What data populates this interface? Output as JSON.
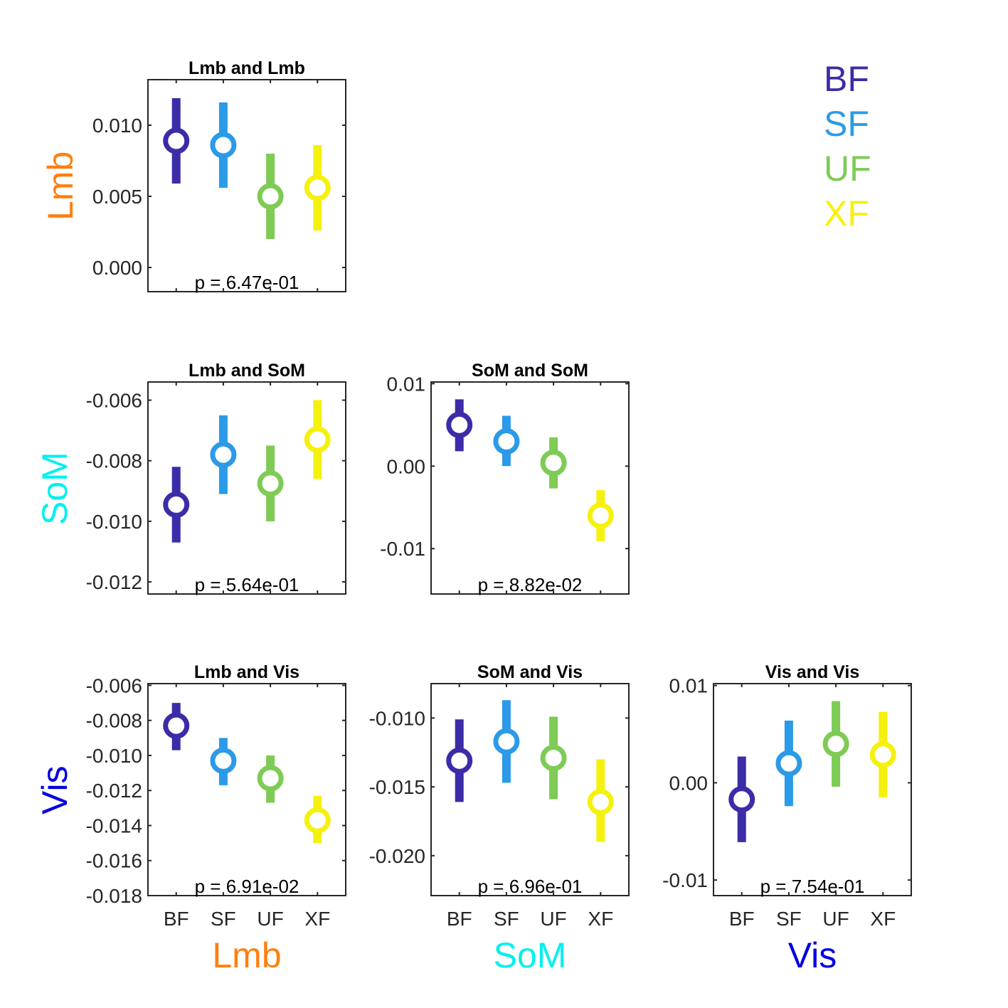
{
  "legend": [
    {
      "label": "BF",
      "color": "#3b2ca8"
    },
    {
      "label": "SF",
      "color": "#2b9ae8"
    },
    {
      "label": "UF",
      "color": "#7ecb55"
    },
    {
      "label": "XF",
      "color": "#f5f10e"
    }
  ],
  "column_labels": [
    {
      "label": "Lmb",
      "color": "#ff7f0e"
    },
    {
      "label": "SoM",
      "color": "#00f0f0"
    },
    {
      "label": "Vis",
      "color": "#0000e0"
    }
  ],
  "row_labels": [
    {
      "label": "Lmb",
      "color": "#ff7f0e"
    },
    {
      "label": "SoM",
      "color": "#00f0f0"
    },
    {
      "label": "Vis",
      "color": "#0000e0"
    }
  ],
  "chart_data": [
    {
      "type": "errorbar",
      "title": "Lmb and Lmb",
      "categories": [
        "BF",
        "SF",
        "UF",
        "XF"
      ],
      "values": [
        0.0089,
        0.0086,
        0.005,
        0.0056
      ],
      "lower": [
        0.0059,
        0.0056,
        0.002,
        0.0026
      ],
      "upper": [
        0.0119,
        0.0116,
        0.008,
        0.0086
      ],
      "ylim": [
        -0.0017,
        0.0132
      ],
      "yticks": [
        0.0,
        0.005,
        0.01
      ],
      "yticklabels": [
        "0.000",
        "0.005",
        "0.010"
      ],
      "annotation": "p = 6.47e-01",
      "show_xticklabels": false
    },
    {
      "type": "errorbar",
      "title": "Lmb and SoM",
      "categories": [
        "BF",
        "SF",
        "UF",
        "XF"
      ],
      "values": [
        -0.00945,
        -0.0078,
        -0.00875,
        -0.0073
      ],
      "lower": [
        -0.0107,
        -0.0091,
        -0.01,
        -0.0086
      ],
      "upper": [
        -0.0082,
        -0.0065,
        -0.0075,
        -0.006
      ],
      "ylim": [
        -0.0124,
        -0.0054
      ],
      "yticks": [
        -0.012,
        -0.01,
        -0.008,
        -0.006
      ],
      "yticklabels": [
        "-0.012",
        "-0.010",
        "-0.008",
        "-0.006"
      ],
      "annotation": "p = 5.64e-01",
      "show_xticklabels": false
    },
    {
      "type": "errorbar",
      "title": "SoM and SoM",
      "categories": [
        "BF",
        "SF",
        "UF",
        "XF"
      ],
      "values": [
        0.005,
        0.003,
        0.0004,
        -0.006
      ],
      "lower": [
        0.0018,
        0.0,
        -0.0027,
        -0.0091
      ],
      "upper": [
        0.0081,
        0.0061,
        0.0035,
        -0.0029
      ],
      "ylim": [
        -0.0155,
        0.0102
      ],
      "yticks": [
        -0.01,
        0.0,
        0.01
      ],
      "yticklabels": [
        "-0.01",
        "0.00",
        "0.01"
      ],
      "annotation": "p = 8.82e-02",
      "show_xticklabels": false
    },
    {
      "type": "errorbar",
      "title": "Lmb and Vis",
      "categories": [
        "BF",
        "SF",
        "UF",
        "XF"
      ],
      "values": [
        -0.0083,
        -0.0103,
        -0.0113,
        -0.0137
      ],
      "lower": [
        -0.0097,
        -0.0117,
        -0.0127,
        -0.015
      ],
      "upper": [
        -0.007,
        -0.009,
        -0.01,
        -0.0123
      ],
      "ylim": [
        -0.018,
        -0.0059
      ],
      "yticks": [
        -0.018,
        -0.016,
        -0.014,
        -0.012,
        -0.01,
        -0.008,
        -0.006
      ],
      "yticklabels": [
        "-0.018",
        "-0.016",
        "-0.014",
        "-0.012",
        "-0.010",
        "-0.008",
        "-0.006"
      ],
      "annotation": "p = 6.91e-02",
      "show_xticklabels": true
    },
    {
      "type": "errorbar",
      "title": "SoM and Vis",
      "categories": [
        "BF",
        "SF",
        "UF",
        "XF"
      ],
      "values": [
        -0.0131,
        -0.0117,
        -0.0129,
        -0.0161
      ],
      "lower": [
        -0.0161,
        -0.0147,
        -0.0159,
        -0.019
      ],
      "upper": [
        -0.0101,
        -0.0087,
        -0.0099,
        -0.013
      ],
      "ylim": [
        -0.0229,
        -0.0075
      ],
      "yticks": [
        -0.02,
        -0.015,
        -0.01
      ],
      "yticklabels": [
        "-0.020",
        "-0.015",
        "-0.010"
      ],
      "annotation": "p = 6.96e-01",
      "show_xticklabels": true
    },
    {
      "type": "errorbar",
      "title": "Vis and Vis",
      "categories": [
        "BF",
        "SF",
        "UF",
        "XF"
      ],
      "values": [
        -0.0017,
        0.002,
        0.004,
        0.0029
      ],
      "lower": [
        -0.0061,
        -0.0024,
        -0.0004,
        -0.0015
      ],
      "upper": [
        0.0027,
        0.0064,
        0.0084,
        0.0073
      ],
      "ylim": [
        -0.0116,
        0.0102
      ],
      "yticks": [
        -0.01,
        0.0,
        0.01
      ],
      "yticklabels": [
        "-0.01",
        "0.00",
        "0.01"
      ],
      "annotation": "p = 7.54e-01",
      "show_xticklabels": true
    }
  ]
}
